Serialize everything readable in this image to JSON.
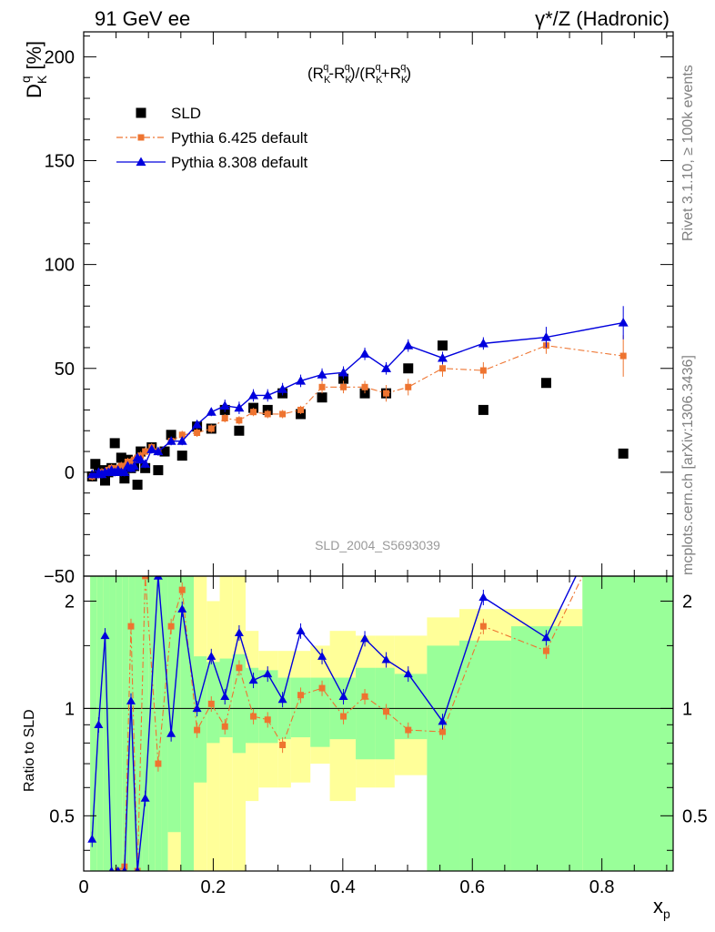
{
  "header": {
    "left": "91 GeV ee",
    "right": "γ*/Z (Hadronic)"
  },
  "side_text": {
    "rivet": "Rivet 3.1.10, ≥ 100k events",
    "mcplots": "mcplots.cern.ch [arXiv:1306.3436]"
  },
  "watermark": "SLD_2004_S5693039",
  "formula": {
    "open": "(R",
    "sub1": "K",
    "sup1": "q",
    "minus": "-R",
    "sub2": "K",
    "sup2": "q",
    "mid": ")/(R",
    "sub3": "K",
    "sup3": "q",
    "plus": "+R",
    "sub4": "K",
    "sup4": "q",
    "close": ")"
  },
  "ylabel_main": {
    "base": "D",
    "sub": "K",
    "sup": "q",
    "unit": "[%]"
  },
  "ylabel_ratio": "Ratio to SLD",
  "xlabel": {
    "base": "x",
    "sub": "p"
  },
  "chart_data": {
    "type": "scatter",
    "title": "",
    "xlim": [
      0,
      0.91
    ],
    "ylim": [
      -50,
      212
    ],
    "ratio_ylim": [
      0.35,
      2.35
    ],
    "x_ticks": [
      "0",
      "0.2",
      "0.4",
      "0.6",
      "0.8"
    ],
    "x_tick_values": [
      0,
      0.2,
      0.4,
      0.6,
      0.8
    ],
    "y_ticks_main": [
      "−50",
      "0",
      "50",
      "100",
      "150",
      "200"
    ],
    "y_tick_values_main": [
      -50,
      0,
      50,
      100,
      150,
      200
    ],
    "y_ticks_ratio": [
      "0.5",
      "1",
      "2"
    ],
    "y_tick_values_ratio": [
      0.5,
      1,
      2
    ],
    "legend_position": "top-left",
    "series": [
      {
        "name": "SLD",
        "color": "#000000",
        "marker": "square",
        "x": [
          0.013,
          0.018,
          0.023,
          0.028,
          0.033,
          0.038,
          0.043,
          0.048,
          0.053,
          0.058,
          0.063,
          0.068,
          0.073,
          0.078,
          0.083,
          0.088,
          0.095,
          0.105,
          0.115,
          0.125,
          0.135,
          0.152,
          0.175,
          0.197,
          0.218,
          0.24,
          0.262,
          0.284,
          0.307,
          0.335,
          0.368,
          0.401,
          0.434,
          0.467,
          0.501,
          0.554,
          0.617,
          0.714,
          0.833
        ],
        "y": [
          -2,
          4,
          0,
          1,
          -4,
          0,
          2,
          14,
          1,
          7,
          -3,
          6,
          2,
          3,
          -6,
          10,
          2,
          12,
          1,
          10,
          18,
          8,
          22,
          21,
          30,
          20,
          31,
          30,
          38,
          28,
          36,
          45,
          38,
          38,
          50,
          61,
          30,
          43,
          9
        ]
      },
      {
        "name": "Pythia 6.425 default",
        "color": "#ee7430",
        "marker": "square",
        "line": "dashdot",
        "x": [
          0.013,
          0.018,
          0.023,
          0.028,
          0.033,
          0.038,
          0.043,
          0.048,
          0.053,
          0.058,
          0.063,
          0.068,
          0.073,
          0.078,
          0.083,
          0.088,
          0.095,
          0.105,
          0.115,
          0.135,
          0.152,
          0.175,
          0.197,
          0.218,
          0.24,
          0.262,
          0.284,
          0.307,
          0.335,
          0.368,
          0.401,
          0.434,
          0.467,
          0.501,
          0.554,
          0.617,
          0.714,
          0.833
        ],
        "y": [
          -2,
          -1,
          -1,
          0,
          0,
          1,
          2,
          1,
          2,
          3,
          3,
          5,
          5,
          6,
          7,
          8,
          10,
          12,
          10,
          15,
          18,
          19,
          21,
          26,
          25,
          29,
          28,
          28,
          30,
          41,
          41,
          41,
          38,
          41,
          50,
          49,
          61,
          56
        ],
        "err": [
          2,
          2,
          2,
          2,
          2,
          2,
          2,
          2,
          2,
          2,
          2,
          2,
          2,
          2,
          2,
          2,
          2,
          2,
          2,
          2,
          2,
          2,
          2,
          2,
          2,
          2,
          2,
          2,
          2,
          3,
          3,
          3,
          4,
          4,
          4,
          4,
          4,
          10
        ]
      },
      {
        "name": "Pythia 8.308 default",
        "color": "#0000dd",
        "marker": "triangle",
        "line": "solid",
        "x": [
          0.013,
          0.018,
          0.023,
          0.028,
          0.033,
          0.038,
          0.043,
          0.048,
          0.053,
          0.058,
          0.063,
          0.068,
          0.073,
          0.078,
          0.083,
          0.088,
          0.095,
          0.105,
          0.115,
          0.135,
          0.152,
          0.175,
          0.197,
          0.218,
          0.24,
          0.262,
          0.284,
          0.307,
          0.335,
          0.368,
          0.401,
          0.434,
          0.467,
          0.501,
          0.554,
          0.617,
          0.714,
          0.833
        ],
        "y": [
          -1,
          -1,
          0,
          -1,
          0,
          0,
          1,
          0,
          1,
          0,
          0,
          3,
          2,
          3,
          7,
          6,
          4,
          11,
          10,
          15,
          15,
          23,
          29,
          32,
          31,
          37,
          37,
          40,
          44,
          47,
          48,
          57,
          50,
          61,
          55,
          62,
          65,
          72
        ],
        "err": [
          2,
          2,
          2,
          2,
          2,
          2,
          2,
          2,
          2,
          2,
          2,
          2,
          2,
          2,
          2,
          2,
          2,
          2,
          2,
          2,
          2,
          2,
          2,
          3,
          3,
          3,
          3,
          3,
          3,
          3,
          3,
          3,
          3,
          3,
          3,
          3,
          5,
          8
        ]
      }
    ],
    "ratio_series": [
      {
        "name": "Pythia 6.425 default",
        "x": [
          0.053,
          0.063,
          0.073,
          0.083,
          0.095,
          0.115,
          0.135,
          0.152,
          0.175,
          0.197,
          0.218,
          0.24,
          0.262,
          0.284,
          0.307,
          0.335,
          0.368,
          0.401,
          0.434,
          0.467,
          0.501,
          0.554,
          0.617,
          0.714
        ],
        "y": [
          0.2,
          0.36,
          1.7,
          0.3,
          2.5,
          0.7,
          1.7,
          2.15,
          0.87,
          1.03,
          0.89,
          1.3,
          0.95,
          0.93,
          0.79,
          1.09,
          1.14,
          0.95,
          1.08,
          0.98,
          0.87,
          0.86,
          1.7,
          1.45
        ]
      },
      {
        "name": "Pythia 8.308 default",
        "x": [
          0.013,
          0.023,
          0.033,
          0.043,
          0.053,
          0.063,
          0.073,
          0.083,
          0.095,
          0.115,
          0.135,
          0.152,
          0.175,
          0.197,
          0.218,
          0.24,
          0.262,
          0.284,
          0.307,
          0.335,
          0.368,
          0.401,
          0.434,
          0.467,
          0.501,
          0.554,
          0.617,
          0.714
        ],
        "y": [
          0.43,
          0.9,
          1.6,
          0.15,
          0.2,
          0.15,
          1.05,
          0.12,
          0.56,
          2.5,
          0.85,
          1.9,
          1.0,
          1.4,
          1.08,
          1.63,
          1.2,
          1.25,
          1.06,
          1.65,
          1.4,
          1.08,
          1.57,
          1.37,
          1.25,
          0.92,
          2.05,
          1.58
        ]
      }
    ],
    "uncertainty_bands": {
      "x_edges": [
        0.01,
        0.02,
        0.03,
        0.04,
        0.05,
        0.06,
        0.07,
        0.08,
        0.09,
        0.1,
        0.11,
        0.12,
        0.13,
        0.15,
        0.17,
        0.19,
        0.21,
        0.23,
        0.25,
        0.27,
        0.3,
        0.32,
        0.35,
        0.38,
        0.42,
        0.45,
        0.48,
        0.53,
        0.58,
        0.66,
        0.77,
        0.91
      ],
      "inner_lo": [
        0.35,
        0.35,
        0.35,
        0.35,
        0.35,
        0.35,
        0.35,
        0.35,
        0.35,
        0.35,
        0.35,
        0.35,
        0.45,
        0.35,
        0.62,
        0.8,
        0.83,
        0.75,
        0.8,
        0.8,
        0.82,
        0.83,
        0.78,
        0.82,
        0.72,
        0.72,
        0.82,
        0.35,
        0.35,
        0.35,
        0.35
      ],
      "inner_hi": [
        2.35,
        2.35,
        2.35,
        2.35,
        2.35,
        2.35,
        2.35,
        2.35,
        2.35,
        2.35,
        2.35,
        2.35,
        2.35,
        2.35,
        1.4,
        1.35,
        1.38,
        1.42,
        1.3,
        1.28,
        1.22,
        1.22,
        1.22,
        1.22,
        1.3,
        1.3,
        1.25,
        1.5,
        1.55,
        1.7,
        2.35
      ],
      "outer_lo": [
        0.35,
        0.35,
        0.35,
        0.35,
        0.35,
        0.35,
        0.35,
        0.35,
        0.35,
        0.35,
        0.35,
        0.35,
        0.35,
        0.35,
        0.35,
        0.35,
        0.35,
        0.35,
        0.55,
        0.6,
        0.6,
        0.62,
        0.7,
        0.55,
        0.6,
        0.6,
        0.65,
        0.35,
        0.35,
        0.35,
        0.35
      ],
      "outer_hi": [
        2.35,
        2.35,
        2.35,
        2.35,
        2.35,
        2.35,
        2.35,
        2.35,
        2.35,
        2.35,
        2.35,
        2.35,
        2.35,
        2.35,
        2.35,
        2.0,
        2.35,
        2.35,
        1.65,
        1.45,
        1.45,
        1.45,
        1.5,
        1.65,
        1.6,
        1.6,
        1.6,
        1.8,
        1.9,
        1.9,
        2.35
      ]
    },
    "colors": {
      "inner_band": "#99ff99",
      "outer_band": "#ffff99"
    }
  }
}
